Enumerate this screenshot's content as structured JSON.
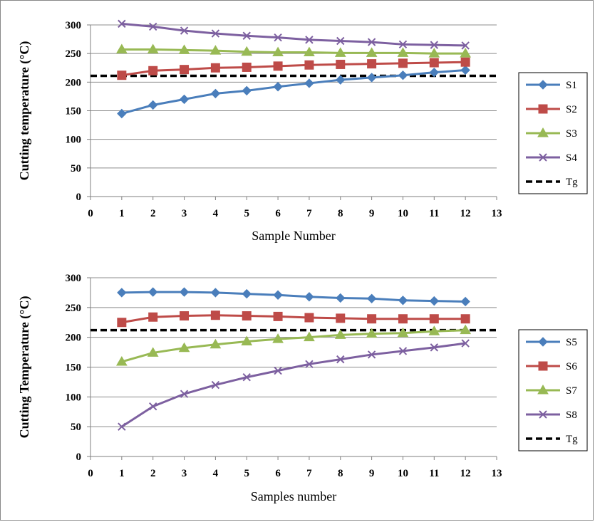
{
  "chart_data": [
    {
      "type": "line",
      "xlabel": "Sample Number",
      "ylabel": "Cutting temperature (°C)",
      "xlim": [
        0,
        13
      ],
      "ylim": [
        0,
        300
      ],
      "xticks": [
        0,
        1,
        2,
        3,
        4,
        5,
        6,
        7,
        8,
        9,
        10,
        11,
        12,
        13
      ],
      "yticks": [
        0,
        50,
        100,
        150,
        200,
        250,
        300
      ],
      "grid": "horizontal",
      "legend_position": "right",
      "x": [
        1,
        2,
        3,
        4,
        5,
        6,
        7,
        8,
        9,
        10,
        11,
        12
      ],
      "series": [
        {
          "name": "S1",
          "color": "#4a7ebb",
          "marker": "diamond",
          "values": [
            145,
            160,
            170,
            180,
            185,
            192,
            198,
            204,
            208,
            212,
            217,
            221
          ]
        },
        {
          "name": "S2",
          "color": "#be4b48",
          "marker": "square",
          "values": [
            212,
            220,
            222,
            225,
            226,
            228,
            230,
            231,
            232,
            233,
            234,
            235
          ]
        },
        {
          "name": "S3",
          "color": "#98b954",
          "marker": "triangle",
          "values": [
            257,
            257,
            256,
            255,
            253,
            252,
            252,
            251,
            251,
            251,
            250,
            250
          ]
        },
        {
          "name": "S4",
          "color": "#7d60a0",
          "marker": "x",
          "values": [
            302,
            297,
            290,
            285,
            281,
            278,
            274,
            272,
            270,
            266,
            265,
            264
          ]
        }
      ],
      "reference_line": {
        "name": "Tg",
        "value": 211,
        "style": "dashed",
        "color": "#000000"
      }
    },
    {
      "type": "line",
      "xlabel": "Samples number",
      "ylabel": "Cutting Temperature (°C)",
      "xlim": [
        0,
        13
      ],
      "ylim": [
        0,
        300
      ],
      "xticks": [
        0,
        1,
        2,
        3,
        4,
        5,
        6,
        7,
        8,
        9,
        10,
        11,
        12,
        13
      ],
      "yticks": [
        0,
        50,
        100,
        150,
        200,
        250,
        300
      ],
      "grid": "horizontal",
      "legend_position": "right",
      "x": [
        1,
        2,
        3,
        4,
        5,
        6,
        7,
        8,
        9,
        10,
        11,
        12
      ],
      "series": [
        {
          "name": "S5",
          "color": "#4a7ebb",
          "marker": "diamond",
          "values": [
            275,
            276,
            276,
            275,
            273,
            271,
            268,
            266,
            265,
            262,
            261,
            260
          ]
        },
        {
          "name": "S6",
          "color": "#be4b48",
          "marker": "square",
          "values": [
            225,
            234,
            236,
            237,
            236,
            235,
            233,
            232,
            231,
            231,
            231,
            231
          ]
        },
        {
          "name": "S7",
          "color": "#98b954",
          "marker": "triangle",
          "values": [
            159,
            174,
            182,
            188,
            193,
            197,
            200,
            204,
            206,
            207,
            210,
            212
          ]
        },
        {
          "name": "S8",
          "color": "#7d60a0",
          "marker": "x",
          "values": [
            50,
            84,
            105,
            120,
            133,
            144,
            155,
            163,
            171,
            177,
            183,
            190
          ]
        }
      ],
      "reference_line": {
        "name": "Tg",
        "value": 212,
        "style": "dashed",
        "color": "#000000"
      }
    }
  ]
}
